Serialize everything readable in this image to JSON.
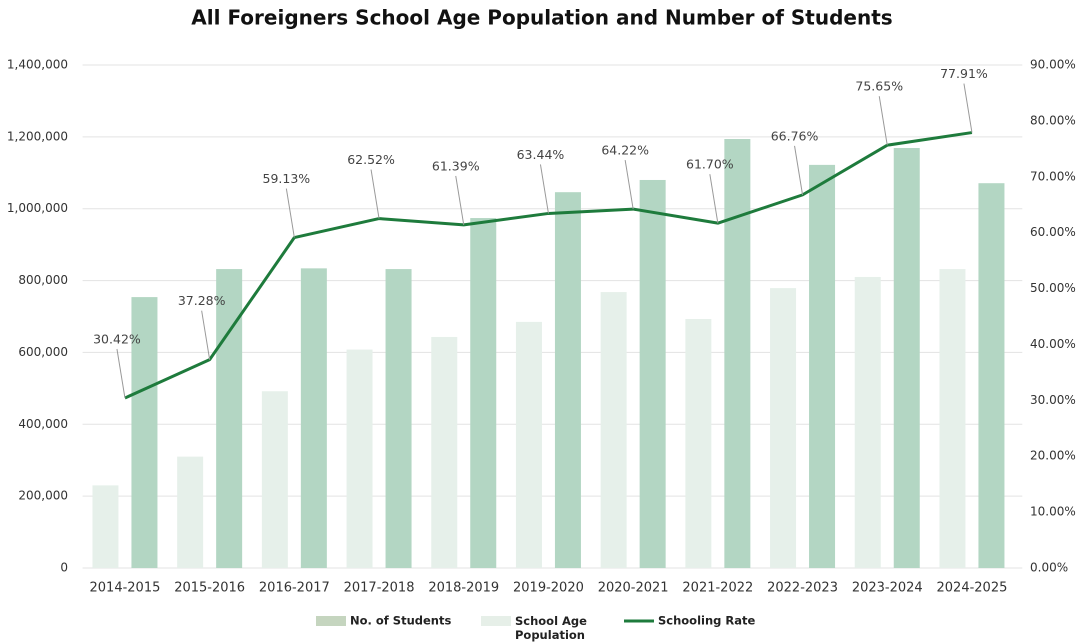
{
  "chart_data": {
    "type": "bar_line",
    "title": "All Foreigners School Age Population and Number of Students",
    "categories": [
      "2014-2015",
      "2015-2016",
      "2016-2017",
      "2017-2018",
      "2018-2019",
      "2019-2020",
      "2020-2021",
      "2021-2022",
      "2022-2023",
      "2023-2024",
      "2024-2025"
    ],
    "series": [
      {
        "name": "No. of Students",
        "color": "#b3d6c3",
        "type": "bar",
        "values": [
          754000,
          832000,
          834000,
          832000,
          974000,
          1046000,
          1080000,
          1194000,
          1122000,
          1169000,
          1071000
        ]
      },
      {
        "name": "School Age Population",
        "color": "#e6f0ea",
        "type": "bar",
        "values": [
          230000,
          310000,
          492000,
          608000,
          643000,
          685000,
          768000,
          693000,
          779000,
          810000,
          832000
        ]
      },
      {
        "name": "Schooling Rate",
        "color": "#1e7b3c",
        "type": "line",
        "axis": "y2",
        "values": [
          30.42,
          37.28,
          59.13,
          62.52,
          61.39,
          63.44,
          64.22,
          61.7,
          66.76,
          75.65,
          77.91
        ],
        "value_labels": [
          "30.42%",
          "37.28%",
          "59.13%",
          "62.52%",
          "61.39%",
          "63.44%",
          "64.22%",
          "61.70%",
          "66.76%",
          "75.65%",
          "77.91%"
        ]
      }
    ],
    "legend_swatches": [
      "#c5d5bf",
      "#e6efe8",
      "#1e7b3c"
    ],
    "ylim": [
      0,
      1400000
    ],
    "yticks": [
      0,
      {
        "value": 200000,
        "label": "200,000"
      },
      {
        "value": 400000,
        "label": "400,000"
      },
      {
        "value": 600000,
        "label": "600,000"
      },
      {
        "value": 800000,
        "label": "800,000"
      },
      {
        "value": 1000000,
        "label": "1,000,000"
      },
      {
        "value": 1200000,
        "label": "1,200,000"
      },
      {
        "value": 1400000,
        "label": "1,400,000"
      }
    ],
    "y2lim": [
      0,
      90
    ],
    "y2ticks": [
      {
        "value": 0,
        "label": "0.00%"
      },
      {
        "value": 10,
        "label": "10.00%"
      },
      {
        "value": 20,
        "label": "20.00%"
      },
      {
        "value": 30,
        "label": "30.00%"
      },
      {
        "value": 40,
        "label": "40.00%"
      },
      {
        "value": 50,
        "label": "50.00%"
      },
      {
        "value": 60,
        "label": "60.00%"
      },
      {
        "value": 70,
        "label": "70.00%"
      },
      {
        "value": 80,
        "label": "80.00%"
      },
      {
        "value": 90,
        "label": "90.00%"
      }
    ],
    "grid": true,
    "legend": "bottom"
  }
}
